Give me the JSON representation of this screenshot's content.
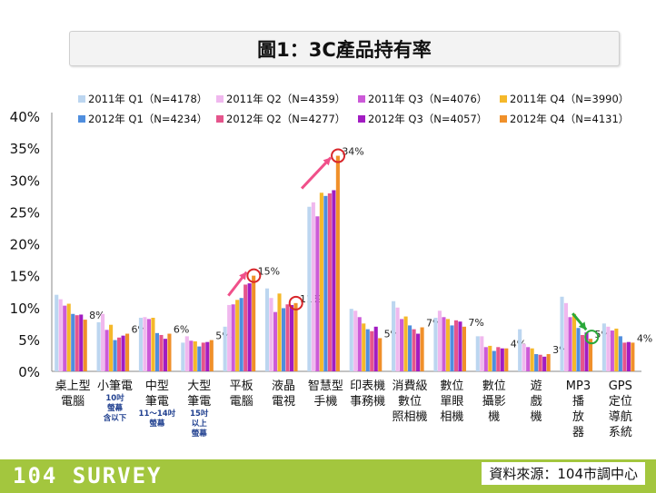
{
  "title": "圖1：3C產品持有率",
  "footer": {
    "brand": "104 SURVEY",
    "source": "資料來源：104市調中心"
  },
  "chart_data": {
    "type": "bar",
    "ylim": [
      0,
      40
    ],
    "yticks": [
      "0%",
      "5%",
      "10%",
      "15%",
      "20%",
      "25%",
      "30%",
      "35%",
      "40%"
    ],
    "grid": false,
    "legend_position": "top",
    "categories": [
      {
        "lines": [
          "桌上型",
          "電腦"
        ],
        "sub": []
      },
      {
        "lines": [
          "小筆電"
        ],
        "sub": [
          "10吋",
          "螢幕",
          "含以下"
        ]
      },
      {
        "lines": [
          "中型",
          "筆電"
        ],
        "sub": [
          "11～14吋",
          "螢幕"
        ]
      },
      {
        "lines": [
          "大型",
          "筆電"
        ],
        "sub": [
          "15吋",
          "以上",
          "螢幕"
        ]
      },
      {
        "lines": [
          "平板",
          "電腦"
        ],
        "sub": []
      },
      {
        "lines": [
          "液晶",
          "電視"
        ],
        "sub": []
      },
      {
        "lines": [
          "智慧型",
          "手機"
        ],
        "sub": []
      },
      {
        "lines": [
          "印表機",
          "事務機"
        ],
        "sub": []
      },
      {
        "lines": [
          "消費級",
          "數位",
          "照相機"
        ],
        "sub": []
      },
      {
        "lines": [
          "數位",
          "單眼",
          "相機"
        ],
        "sub": []
      },
      {
        "lines": [
          "數位",
          "攝影",
          "機"
        ],
        "sub": []
      },
      {
        "lines": [
          "遊",
          "戲",
          "機"
        ],
        "sub": []
      },
      {
        "lines": [
          "MP3",
          "播",
          "放",
          "器"
        ],
        "sub": []
      },
      {
        "lines": [
          "GPS",
          "定位",
          "導航",
          "系統"
        ],
        "sub": []
      }
    ],
    "value_labels": [
      "8%",
      "6%",
      "6%",
      "5%",
      "15%",
      "11%",
      "34%",
      "5%",
      "7%",
      "7%",
      "4%",
      "3%",
      "5%",
      "4%"
    ],
    "series": [
      {
        "name": "2011年 Q1（N=4178）",
        "color": "#bcd6f0",
        "values": [
          12.0,
          7.7,
          8.4,
          4.5,
          7.0,
          13.0,
          25.8,
          9.8,
          11.0,
          8.4,
          5.5,
          6.6,
          11.7,
          7.5
        ]
      },
      {
        "name": "2011年 Q2（N=4359）",
        "color": "#f0b8ee",
        "values": [
          11.3,
          9.0,
          8.5,
          5.5,
          10.4,
          11.5,
          26.5,
          9.5,
          10.0,
          9.5,
          5.5,
          4.3,
          10.7,
          7.0
        ]
      },
      {
        "name": "2011年 Q3（N=4076）",
        "color": "#cc5ad8",
        "values": [
          10.3,
          6.5,
          8.2,
          4.8,
          10.5,
          9.3,
          24.3,
          8.5,
          8.2,
          8.5,
          3.8,
          3.8,
          8.5,
          6.4
        ]
      },
      {
        "name": "2011年 Q4（N=3990）",
        "color": "#f5b82a",
        "values": [
          10.6,
          7.3,
          8.4,
          4.7,
          11.2,
          12.2,
          28.0,
          7.5,
          8.6,
          8.2,
          4.0,
          3.6,
          9.0,
          6.7
        ]
      },
      {
        "name": "2012年 Q1（N=4234）",
        "color": "#4f8ede",
        "values": [
          9.0,
          4.9,
          6.0,
          3.9,
          11.5,
          9.9,
          27.5,
          6.6,
          7.2,
          7.2,
          3.2,
          2.7,
          6.8,
          5.5
        ]
      },
      {
        "name": "2012年 Q2（N=4277）",
        "color": "#e5558c",
        "values": [
          8.8,
          5.3,
          5.7,
          4.5,
          13.6,
          10.5,
          27.9,
          6.3,
          6.6,
          8.0,
          3.8,
          2.6,
          5.7,
          4.5
        ]
      },
      {
        "name": "2012年 Q3（N=4057）",
        "color": "#a21cc2",
        "values": [
          8.9,
          5.6,
          5.1,
          4.6,
          13.8,
          10.4,
          28.4,
          7.0,
          5.9,
          7.8,
          3.6,
          2.3,
          6.1,
          4.6
        ]
      },
      {
        "name": "2012年 Q4（N=4131）",
        "color": "#f0902a",
        "values": [
          8.1,
          5.9,
          5.9,
          4.9,
          15.0,
          10.7,
          33.8,
          5.2,
          6.9,
          7.0,
          3.6,
          2.7,
          5.1,
          4.5
        ]
      }
    ]
  }
}
